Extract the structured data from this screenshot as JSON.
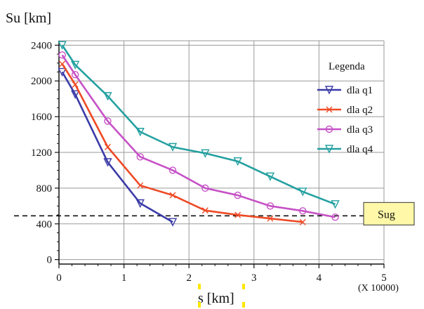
{
  "chart_data": {
    "type": "line",
    "ylabel": "Su [km]",
    "xlabel": "s [km]",
    "x_multiplier_note": "(X 10000)",
    "xlim": [
      0,
      5
    ],
    "ylim": [
      -50,
      2450
    ],
    "x_ticks": [
      0,
      1,
      2,
      3,
      4,
      5
    ],
    "y_ticks": [
      0,
      400,
      800,
      1200,
      1600,
      2000,
      2400
    ],
    "grid": true,
    "legend": {
      "title": "Legenda",
      "position": "right"
    },
    "reference_line": {
      "label": "Sug",
      "y": 490
    },
    "series": [
      {
        "name": "dla q1",
        "color": "#3b3ba8",
        "marker": "triangle-down",
        "x": [
          0.05,
          0.25,
          0.75,
          1.25,
          1.75
        ],
        "y": [
          2100,
          1850,
          1090,
          630,
          420
        ]
      },
      {
        "name": "dla q2",
        "color": "#ee4a26",
        "marker": "x",
        "x": [
          0.05,
          0.25,
          0.75,
          1.25,
          1.75,
          2.25,
          2.75,
          3.25,
          3.75
        ],
        "y": [
          2190,
          1960,
          1260,
          830,
          720,
          550,
          500,
          460,
          420
        ]
      },
      {
        "name": "dla q3",
        "color": "#c651c6",
        "marker": "circle",
        "x": [
          0.05,
          0.25,
          0.75,
          1.25,
          1.75,
          2.25,
          2.75,
          3.25,
          3.75,
          4.25
        ],
        "y": [
          2290,
          2070,
          1550,
          1150,
          1000,
          800,
          720,
          600,
          545,
          475
        ]
      },
      {
        "name": "dla q4",
        "color": "#24a0a0",
        "marker": "triangle-down",
        "x": [
          0.05,
          0.25,
          0.75,
          1.25,
          1.75,
          2.25,
          2.75,
          3.25,
          3.75,
          4.25
        ],
        "y": [
          2400,
          2180,
          1830,
          1430,
          1260,
          1190,
          1100,
          930,
          760,
          620
        ]
      }
    ]
  }
}
